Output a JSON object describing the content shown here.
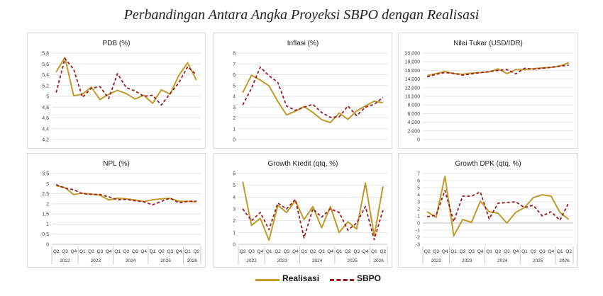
{
  "main_title": "Perbandingan Antara Angka Proyeksi SBPO dengan Realisasi",
  "legend": {
    "realisasi": "Realisasi",
    "sbpo": "SBPO"
  },
  "colors": {
    "realisasi": "#C09A2B",
    "sbpo": "#9B1B1E",
    "grid": "#e4e4e4",
    "axis": "#bdbdbd"
  },
  "quarters": [
    "Q2",
    "Q3",
    "Q4",
    "Q1",
    "Q2",
    "Q3",
    "Q4",
    "Q1",
    "Q2",
    "Q3",
    "Q4",
    "Q1",
    "Q2",
    "Q3",
    "Q4",
    "Q1",
    "Q2"
  ],
  "years": [
    {
      "label": "2022",
      "start": 0,
      "end": 2
    },
    {
      "label": "2023",
      "start": 3,
      "end": 6
    },
    {
      "label": "2024",
      "start": 7,
      "end": 10
    },
    {
      "label": "2025",
      "start": 11,
      "end": 14
    },
    {
      "label": "2026",
      "start": 15,
      "end": 16
    }
  ],
  "chart_data": [
    {
      "type": "line",
      "title": "PDB (%)",
      "ylim": [
        4.2,
        5.8
      ],
      "yticks": [
        "4,2",
        "4,4",
        "4,6",
        "4,8",
        "5",
        "5,2",
        "5,4",
        "5,6",
        "5,8"
      ],
      "show_xaxis": false,
      "series": [
        {
          "name": "Realisasi",
          "values": [
            5.45,
            5.72,
            5.01,
            5.04,
            5.17,
            4.94,
            5.04,
            5.11,
            5.05,
            4.95,
            5.02,
            4.87,
            5.12,
            5.04,
            5.39,
            5.62,
            5.3
          ]
        },
        {
          "name": "SBPO",
          "values": [
            5.07,
            5.7,
            5.5,
            4.98,
            5.15,
            5.18,
            4.96,
            5.42,
            5.16,
            5.1,
            5.0,
            5.02,
            4.84,
            5.05,
            5.25,
            5.55,
            5.4
          ]
        }
      ]
    },
    {
      "type": "line",
      "title": "Inflasi (%)",
      "ylim": [
        0,
        8
      ],
      "yticks": [
        "0",
        "1",
        "2",
        "3",
        "4",
        "5",
        "6",
        "7",
        "8"
      ],
      "show_xaxis": false,
      "series": [
        {
          "name": "Realisasi",
          "values": [
            4.35,
            5.95,
            5.51,
            4.97,
            3.52,
            2.28,
            2.61,
            3.05,
            2.51,
            1.84,
            1.57,
            2.45,
            1.87,
            2.65,
            3.1,
            3.55,
            3.4
          ]
        },
        {
          "name": "SBPO",
          "values": [
            3.2,
            4.75,
            6.7,
            5.9,
            5.3,
            3.1,
            2.7,
            3.0,
            3.25,
            2.5,
            2.05,
            2.1,
            3.1,
            2.2,
            3.0,
            3.25,
            3.9
          ]
        }
      ]
    },
    {
      "type": "line",
      "title": "Nilai Tukar (USD/IDR)",
      "ylim": [
        0,
        20000
      ],
      "yticks": [
        "0",
        "2.000",
        "4.000",
        "6.000",
        "8.000",
        "10.000",
        "12.000",
        "14.000",
        "16.000",
        "18.000",
        "20.000"
      ],
      "show_xaxis": false,
      "series": [
        {
          "name": "Realisasi",
          "values": [
            14800,
            15250,
            15730,
            15270,
            15100,
            15380,
            15500,
            15650,
            16350,
            15260,
            16160,
            16200,
            16400,
            16570,
            16700,
            17000,
            17800
          ]
        },
        {
          "name": "SBPO",
          "values": [
            14500,
            15100,
            15500,
            15300,
            14900,
            15200,
            15500,
            15700,
            16000,
            16200,
            15200,
            16500,
            16300,
            16500,
            16700,
            17000,
            17200
          ]
        }
      ]
    },
    {
      "type": "line",
      "title": "NPL (%)",
      "ylim": [
        0,
        3.5
      ],
      "yticks": [
        "0",
        "0,5",
        "1",
        "1,5",
        "2",
        "2,5",
        "3",
        "3,5"
      ],
      "show_xaxis": true,
      "series": [
        {
          "name": "Realisasi",
          "values": [
            2.9,
            2.8,
            2.46,
            2.53,
            2.48,
            2.43,
            2.19,
            2.28,
            2.25,
            2.19,
            2.11,
            2.2,
            2.25,
            2.27,
            2.13,
            2.12,
            2.1
          ]
        },
        {
          "name": "SBPO",
          "values": [
            2.95,
            2.78,
            2.7,
            2.5,
            2.47,
            2.46,
            2.35,
            2.2,
            2.22,
            2.15,
            2.1,
            1.95,
            2.12,
            2.28,
            2.05,
            2.12,
            2.13
          ]
        }
      ]
    },
    {
      "type": "line",
      "title": "Growth Kredit (qtq, %)",
      "ylim": [
        0,
        6
      ],
      "yticks": [
        "0",
        "1",
        "2",
        "3",
        "4",
        "5",
        "6"
      ],
      "show_xaxis": true,
      "series": [
        {
          "name": "Realisasi",
          "values": [
            5.3,
            1.6,
            2.2,
            0.35,
            3.3,
            2.7,
            3.7,
            2.1,
            3.2,
            1.4,
            3.2,
            1.0,
            1.9,
            1.3,
            5.2,
            0.7,
            4.9
          ]
        },
        {
          "name": "SBPO",
          "values": [
            3.0,
            2.0,
            2.7,
            1.25,
            3.5,
            3.0,
            3.8,
            0.55,
            3.0,
            2.3,
            3.0,
            2.7,
            1.2,
            1.8,
            3.2,
            0.4,
            2.9
          ]
        }
      ]
    },
    {
      "type": "line",
      "title": "Growth DPK (qtq, %)",
      "ylim": [
        -3,
        7
      ],
      "yticks": [
        "-3",
        "-2",
        "-1",
        "0",
        "1",
        "2",
        "3",
        "4",
        "5",
        "6",
        "7"
      ],
      "show_xaxis": true,
      "series": [
        {
          "name": "Realisasi",
          "values": [
            1.6,
            0.8,
            6.6,
            -1.8,
            0.5,
            0.1,
            3.1,
            1.6,
            1.4,
            0.0,
            1.5,
            2.2,
            3.6,
            4.0,
            3.8,
            1.5,
            0.5
          ]
        },
        {
          "name": "SBPO",
          "values": [
            0.9,
            1.1,
            4.6,
            0.2,
            3.8,
            3.8,
            4.4,
            0.6,
            2.8,
            2.9,
            3.0,
            2.2,
            2.5,
            1.0,
            1.6,
            0.4,
            2.9
          ]
        }
      ]
    }
  ]
}
